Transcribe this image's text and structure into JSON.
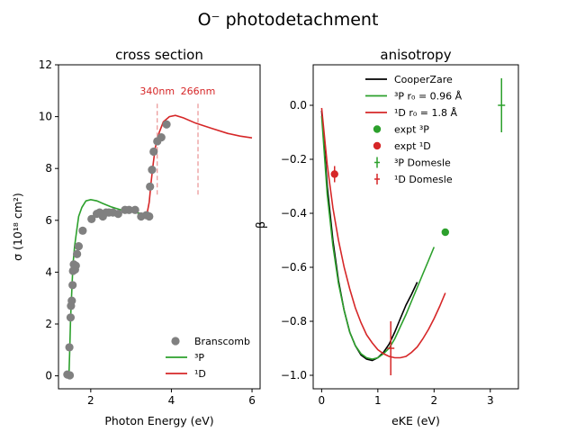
{
  "figure": {
    "suptitle": "O⁻ photodetachment"
  },
  "colors": {
    "scatter_gray": "#808080",
    "green": "#2ca02c",
    "red": "#d62728",
    "black": "#000000"
  },
  "chart_data": [
    {
      "type": "scatter",
      "title": "cross section",
      "xlabel": "Photon Energy (eV)",
      "ylabel": "σ (10¹⁸ cm²)",
      "xlim": [
        1.2,
        6.2
      ],
      "ylim": [
        -0.5,
        12.0
      ],
      "xticks": [
        2,
        4,
        6
      ],
      "yticks": [
        0,
        2,
        4,
        6,
        8,
        10,
        12
      ],
      "legend_position": "lower right",
      "legend": [
        {
          "label": "Branscomb",
          "marker": "circle",
          "color": "#808080"
        },
        {
          "label": "³P",
          "marker": "line",
          "color": "#2ca02c"
        },
        {
          "label": "¹D",
          "marker": "line",
          "color": "#d62728"
        }
      ],
      "annotations": [
        {
          "text": "340nm",
          "x": 3.65,
          "y": 11.0,
          "vline_y": [
            6.9,
            10.5
          ]
        },
        {
          "text": "266nm",
          "x": 4.66,
          "y": 11.0,
          "vline_y": [
            6.9,
            10.5
          ]
        }
      ],
      "series": [
        {
          "name": "Branscomb",
          "kind": "scatter",
          "color": "#808080",
          "points": [
            [
              1.42,
              0.05
            ],
            [
              1.48,
              0.02
            ],
            [
              1.47,
              1.1
            ],
            [
              1.5,
              2.25
            ],
            [
              1.51,
              2.7
            ],
            [
              1.53,
              2.9
            ],
            [
              1.55,
              3.5
            ],
            [
              1.56,
              4.05
            ],
            [
              1.58,
              4.3
            ],
            [
              1.61,
              4.1
            ],
            [
              1.63,
              4.25
            ],
            [
              1.66,
              4.7
            ],
            [
              1.7,
              5.0
            ],
            [
              1.8,
              5.6
            ],
            [
              2.02,
              6.05
            ],
            [
              2.15,
              6.25
            ],
            [
              2.22,
              6.3
            ],
            [
              2.3,
              6.15
            ],
            [
              2.38,
              6.3
            ],
            [
              2.45,
              6.3
            ],
            [
              2.55,
              6.3
            ],
            [
              2.68,
              6.25
            ],
            [
              2.85,
              6.4
            ],
            [
              2.95,
              6.4
            ],
            [
              3.1,
              6.4
            ],
            [
              3.25,
              6.15
            ],
            [
              3.38,
              6.2
            ],
            [
              3.45,
              6.15
            ],
            [
              3.47,
              7.3
            ],
            [
              3.52,
              7.95
            ],
            [
              3.56,
              8.65
            ],
            [
              3.65,
              9.05
            ],
            [
              3.75,
              9.2
            ],
            [
              3.88,
              9.7
            ]
          ]
        },
        {
          "name": "³P",
          "kind": "line",
          "color": "#2ca02c",
          "points": [
            [
              1.46,
              0.0
            ],
            [
              1.48,
              1.0
            ],
            [
              1.5,
              2.2
            ],
            [
              1.53,
              3.3
            ],
            [
              1.56,
              4.3
            ],
            [
              1.6,
              5.0
            ],
            [
              1.65,
              5.6
            ],
            [
              1.7,
              6.15
            ],
            [
              1.78,
              6.5
            ],
            [
              1.88,
              6.75
            ],
            [
              2.0,
              6.8
            ],
            [
              2.15,
              6.75
            ],
            [
              2.3,
              6.65
            ],
            [
              2.5,
              6.52
            ],
            [
              2.8,
              6.38
            ],
            [
              3.1,
              6.3
            ],
            [
              3.3,
              6.25
            ],
            [
              3.45,
              6.22
            ]
          ]
        },
        {
          "name": "¹D",
          "kind": "line",
          "color": "#d62728",
          "points": [
            [
              3.3,
              6.2
            ],
            [
              3.4,
              6.3
            ],
            [
              3.45,
              6.7
            ],
            [
              3.5,
              7.5
            ],
            [
              3.55,
              8.2
            ],
            [
              3.6,
              8.8
            ],
            [
              3.7,
              9.4
            ],
            [
              3.8,
              9.8
            ],
            [
              3.95,
              10.0
            ],
            [
              4.1,
              10.05
            ],
            [
              4.3,
              9.95
            ],
            [
              4.6,
              9.75
            ],
            [
              5.0,
              9.55
            ],
            [
              5.4,
              9.35
            ],
            [
              5.7,
              9.25
            ],
            [
              6.0,
              9.18
            ]
          ]
        }
      ]
    },
    {
      "type": "line",
      "title": "anisotropy",
      "xlabel": "eKE (eV)",
      "ylabel": "β",
      "xlim": [
        -0.15,
        3.5
      ],
      "ylim": [
        -1.05,
        0.15
      ],
      "xticks": [
        0,
        1,
        2,
        3
      ],
      "yticks": [
        0.0,
        -0.2,
        -0.4,
        -0.6,
        -0.8,
        -1.0
      ],
      "ytick_labels": [
        "0.0",
        "−0.2",
        "−0.4",
        "−0.6",
        "−0.8",
        "−1.0"
      ],
      "legend_position": "upper center",
      "legend": [
        {
          "label": "CooperZare",
          "marker": "line",
          "color": "#000000"
        },
        {
          "label": "³P r₀ = 0.96 Å",
          "marker": "line",
          "color": "#2ca02c"
        },
        {
          "label": "¹D r₀ = 1.8 Å",
          "marker": "line",
          "color": "#d62728"
        },
        {
          "label": "expt ³P",
          "marker": "errorpoint",
          "color": "#2ca02c"
        },
        {
          "label": "expt ¹D",
          "marker": "errorpoint",
          "color": "#d62728"
        },
        {
          "label": "³P Domesle",
          "marker": "errorbar",
          "color": "#2ca02c"
        },
        {
          "label": "¹D Domesle",
          "marker": "errorbar",
          "color": "#d62728"
        }
      ],
      "series": [
        {
          "name": "CooperZare",
          "kind": "line",
          "color": "#000000",
          "points": [
            [
              0.0,
              -0.02
            ],
            [
              0.1,
              -0.3
            ],
            [
              0.2,
              -0.5
            ],
            [
              0.3,
              -0.65
            ],
            [
              0.4,
              -0.76
            ],
            [
              0.5,
              -0.84
            ],
            [
              0.6,
              -0.89
            ],
            [
              0.7,
              -0.925
            ],
            [
              0.8,
              -0.94
            ],
            [
              0.9,
              -0.945
            ],
            [
              1.0,
              -0.935
            ],
            [
              1.1,
              -0.915
            ],
            [
              1.2,
              -0.885
            ],
            [
              1.3,
              -0.84
            ],
            [
              1.4,
              -0.79
            ],
            [
              1.5,
              -0.74
            ],
            [
              1.6,
              -0.7
            ],
            [
              1.7,
              -0.655
            ]
          ]
        },
        {
          "name": "³P r₀ = 0.96 Å",
          "kind": "line",
          "color": "#2ca02c",
          "points": [
            [
              0.0,
              -0.04
            ],
            [
              0.1,
              -0.33
            ],
            [
              0.2,
              -0.52
            ],
            [
              0.3,
              -0.66
            ],
            [
              0.4,
              -0.76
            ],
            [
              0.5,
              -0.84
            ],
            [
              0.6,
              -0.89
            ],
            [
              0.7,
              -0.92
            ],
            [
              0.8,
              -0.935
            ],
            [
              0.9,
              -0.94
            ],
            [
              1.0,
              -0.935
            ],
            [
              1.1,
              -0.92
            ],
            [
              1.2,
              -0.9
            ],
            [
              1.3,
              -0.865
            ],
            [
              1.4,
              -0.82
            ],
            [
              1.5,
              -0.775
            ],
            [
              1.6,
              -0.725
            ],
            [
              1.7,
              -0.675
            ],
            [
              1.8,
              -0.625
            ],
            [
              1.9,
              -0.575
            ],
            [
              2.0,
              -0.525
            ]
          ]
        },
        {
          "name": "¹D r₀ = 1.8 Å",
          "kind": "line",
          "color": "#d62728",
          "points": [
            [
              0.0,
              -0.01
            ],
            [
              0.1,
              -0.22
            ],
            [
              0.2,
              -0.38
            ],
            [
              0.3,
              -0.5
            ],
            [
              0.4,
              -0.6
            ],
            [
              0.5,
              -0.68
            ],
            [
              0.6,
              -0.75
            ],
            [
              0.7,
              -0.805
            ],
            [
              0.8,
              -0.85
            ],
            [
              0.9,
              -0.88
            ],
            [
              1.0,
              -0.905
            ],
            [
              1.1,
              -0.92
            ],
            [
              1.2,
              -0.93
            ],
            [
              1.3,
              -0.935
            ],
            [
              1.4,
              -0.935
            ],
            [
              1.5,
              -0.93
            ],
            [
              1.6,
              -0.915
            ],
            [
              1.7,
              -0.895
            ],
            [
              1.8,
              -0.865
            ],
            [
              1.9,
              -0.83
            ],
            [
              2.0,
              -0.79
            ],
            [
              2.1,
              -0.745
            ],
            [
              2.2,
              -0.695
            ]
          ]
        },
        {
          "name": "expt ³P",
          "kind": "errorpoint",
          "color": "#2ca02c",
          "points": [
            [
              2.2,
              -0.47,
              0.0
            ]
          ]
        },
        {
          "name": "expt ¹D",
          "kind": "errorpoint",
          "color": "#d62728",
          "points": [
            [
              0.23,
              -0.255,
              0.03
            ]
          ]
        },
        {
          "name": "³P Domesle",
          "kind": "errorbar",
          "color": "#2ca02c",
          "points": [
            [
              3.2,
              0.0,
              0.1
            ]
          ]
        },
        {
          "name": "¹D Domesle",
          "kind": "errorbar",
          "color": "#d62728",
          "points": [
            [
              1.23,
              -0.9,
              0.1
            ]
          ]
        }
      ]
    }
  ]
}
